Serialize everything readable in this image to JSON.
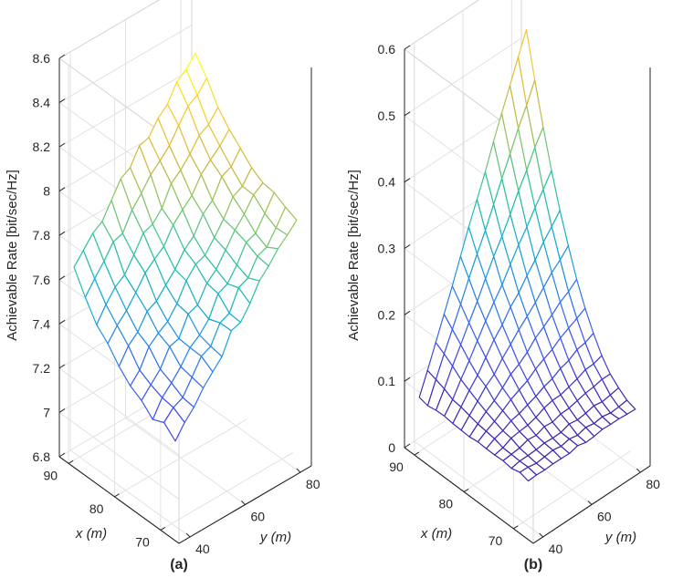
{
  "chart_data": [
    {
      "type": "surface",
      "panel_label": "(a)",
      "xlabel": "x (m)",
      "ylabel": "y (m)",
      "zlabel": "Achievable Rate [bit/sec/Hz]",
      "xlim": [
        66,
        92
      ],
      "ylim": [
        36,
        84
      ],
      "zlim": [
        6.8,
        8.6
      ],
      "x_ticks": [
        "70",
        "80",
        "90"
      ],
      "y_ticks": [
        "40",
        "60",
        "80"
      ],
      "z_ticks": [
        "6.8",
        "7",
        "7.2",
        "7.4",
        "7.6",
        "7.8",
        "8",
        "8.2",
        "8.4",
        "8.6"
      ],
      "x_range": [
        68,
        90
      ],
      "y_range": [
        38,
        82
      ],
      "nx": 10,
      "ny": 14,
      "surface_model": "z = 7.24 + 0.00089*(x-68)^2 + 0.0151*(y-38) + small noise",
      "z_corners": {
        "x68_y38": 7.24,
        "x90_y38": 7.68,
        "x68_y82": 7.9,
        "x90_y82": 8.35
      },
      "colormap": [
        "#3e26a8",
        "#4352f2",
        "#2c82f1",
        "#17aed1",
        "#2ec39f",
        "#86c668",
        "#d4ba39",
        "#fec737",
        "#f9fb15"
      ]
    },
    {
      "type": "surface",
      "panel_label": "(b)",
      "xlabel": "x (m)",
      "ylabel": "y (m)",
      "zlabel": "Achievable Rate [bit/sec/Hz]",
      "xlim": [
        66,
        92
      ],
      "ylim": [
        36,
        84
      ],
      "zlim": [
        0,
        0.6
      ],
      "x_ticks": [
        "70",
        "80",
        "90"
      ],
      "y_ticks": [
        "40",
        "60",
        "80"
      ],
      "z_ticks": [
        "0",
        "0.1",
        "0.2",
        "0.3",
        "0.4",
        "0.5",
        "0.6"
      ],
      "x_range": [
        68,
        90
      ],
      "y_range": [
        38,
        82
      ],
      "nx": 14,
      "ny": 14,
      "surface_model": "z = 0.08 + 0.45*((x-68)/22)^2*((y-38)/44)",
      "z_corners": {
        "x68_y38": 0.08,
        "x90_y38": 0.08,
        "x68_y82": 0.08,
        "x90_y82": 0.53
      },
      "colormap": [
        "#3e26a8",
        "#4352f2",
        "#2c82f1",
        "#17aed1",
        "#2ec39f",
        "#86c668",
        "#d4ba39",
        "#fec737",
        "#f9fb15"
      ]
    }
  ]
}
